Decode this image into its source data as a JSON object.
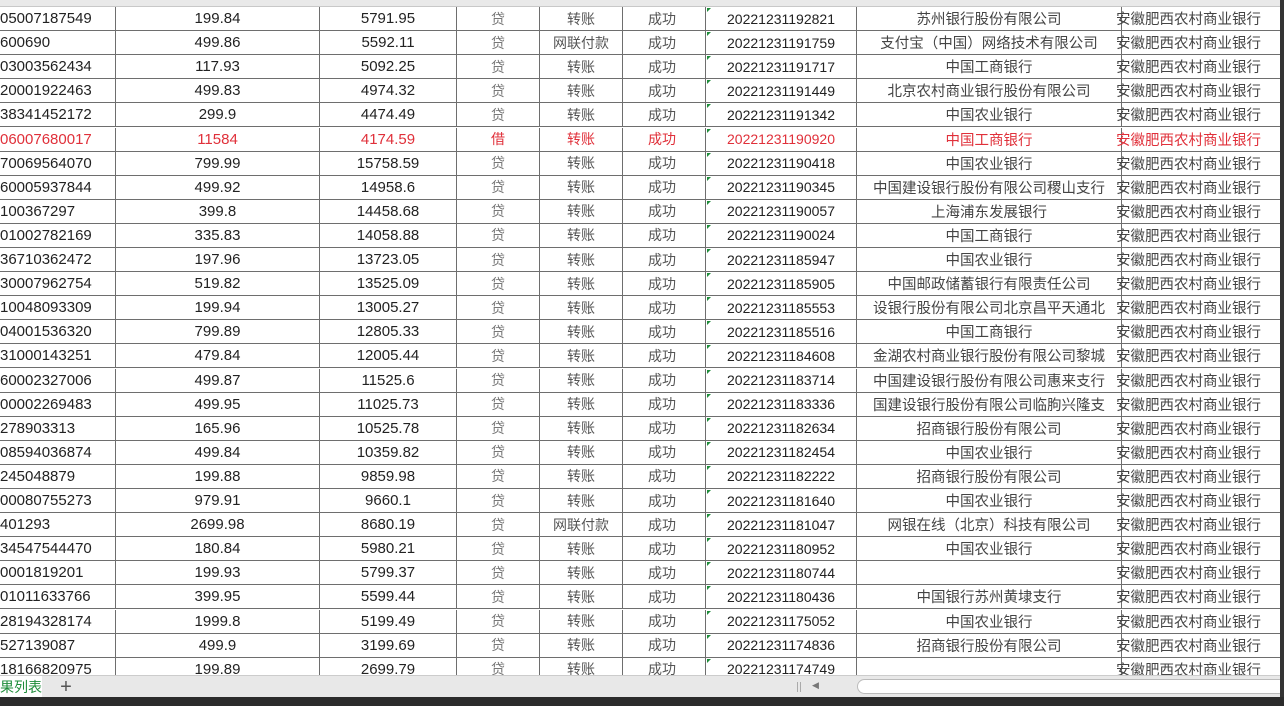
{
  "sheet_tab_label": "果列表",
  "add_sheet_icon": "plus-icon",
  "colors": {
    "accent": "#1e8c3a",
    "highlight_row": "#e0303a"
  },
  "rows": [
    {
      "account": "05007187549",
      "amount": "199.84",
      "balance": "5791.95",
      "direction": "贷",
      "type": "转账",
      "status": "成功",
      "time": "20221231192821",
      "counterparty_bank": "苏州银行股份有限公司",
      "bank": "安徽肥西农村商业银行"
    },
    {
      "account": "600690",
      "amount": "499.86",
      "balance": "5592.11",
      "direction": "贷",
      "type": "网联付款",
      "status": "成功",
      "time": "20221231191759",
      "counterparty_bank": "支付宝（中国）网络技术有限公司",
      "bank": "安徽肥西农村商业银行"
    },
    {
      "account": "03003562434",
      "amount": "117.93",
      "balance": "5092.25",
      "direction": "贷",
      "type": "转账",
      "status": "成功",
      "time": "20221231191717",
      "counterparty_bank": "中国工商银行",
      "bank": "安徽肥西农村商业银行"
    },
    {
      "account": "20001922463",
      "amount": "499.83",
      "balance": "4974.32",
      "direction": "贷",
      "type": "转账",
      "status": "成功",
      "time": "20221231191449",
      "counterparty_bank": "北京农村商业银行股份有限公司",
      "bank": "安徽肥西农村商业银行"
    },
    {
      "account": "38341452172",
      "amount": "299.9",
      "balance": "4474.49",
      "direction": "贷",
      "type": "转账",
      "status": "成功",
      "time": "20221231191342",
      "counterparty_bank": "中国农业银行",
      "bank": "安徽肥西农村商业银行"
    },
    {
      "account": "06007680017",
      "amount": "11584",
      "balance": "4174.59",
      "direction": "借",
      "type": "转账",
      "status": "成功",
      "time": "20221231190920",
      "counterparty_bank": "中国工商银行",
      "bank": "安徽肥西农村商业银行",
      "highlight": true
    },
    {
      "account": "70069564070",
      "amount": "799.99",
      "balance": "15758.59",
      "direction": "贷",
      "type": "转账",
      "status": "成功",
      "time": "20221231190418",
      "counterparty_bank": "中国农业银行",
      "bank": "安徽肥西农村商业银行"
    },
    {
      "account": "60005937844",
      "amount": "499.92",
      "balance": "14958.6",
      "direction": "贷",
      "type": "转账",
      "status": "成功",
      "time": "20221231190345",
      "counterparty_bank": "中国建设银行股份有限公司稷山支行",
      "bank": "安徽肥西农村商业银行"
    },
    {
      "account": "100367297",
      "amount": "399.8",
      "balance": "14458.68",
      "direction": "贷",
      "type": "转账",
      "status": "成功",
      "time": "20221231190057",
      "counterparty_bank": "上海浦东发展银行",
      "bank": "安徽肥西农村商业银行"
    },
    {
      "account": "01002782169",
      "amount": "335.83",
      "balance": "14058.88",
      "direction": "贷",
      "type": "转账",
      "status": "成功",
      "time": "20221231190024",
      "counterparty_bank": "中国工商银行",
      "bank": "安徽肥西农村商业银行"
    },
    {
      "account": "36710362472",
      "amount": "197.96",
      "balance": "13723.05",
      "direction": "贷",
      "type": "转账",
      "status": "成功",
      "time": "20221231185947",
      "counterparty_bank": "中国农业银行",
      "bank": "安徽肥西农村商业银行"
    },
    {
      "account": "30007962754",
      "amount": "519.82",
      "balance": "13525.09",
      "direction": "贷",
      "type": "转账",
      "status": "成功",
      "time": "20221231185905",
      "counterparty_bank": "中国邮政储蓄银行有限责任公司",
      "bank": "安徽肥西农村商业银行"
    },
    {
      "account": "10048093309",
      "amount": "199.94",
      "balance": "13005.27",
      "direction": "贷",
      "type": "转账",
      "status": "成功",
      "time": "20221231185553",
      "counterparty_bank": "设银行股份有限公司北京昌平天通北",
      "bank": "安徽肥西农村商业银行"
    },
    {
      "account": "04001536320",
      "amount": "799.89",
      "balance": "12805.33",
      "direction": "贷",
      "type": "转账",
      "status": "成功",
      "time": "20221231185516",
      "counterparty_bank": "中国工商银行",
      "bank": "安徽肥西农村商业银行"
    },
    {
      "account": "31000143251",
      "amount": "479.84",
      "balance": "12005.44",
      "direction": "贷",
      "type": "转账",
      "status": "成功",
      "time": "20221231184608",
      "counterparty_bank": "金湖农村商业银行股份有限公司黎城",
      "bank": "安徽肥西农村商业银行"
    },
    {
      "account": "60002327006",
      "amount": "499.87",
      "balance": "11525.6",
      "direction": "贷",
      "type": "转账",
      "status": "成功",
      "time": "20221231183714",
      "counterparty_bank": "中国建设银行股份有限公司惠来支行",
      "bank": "安徽肥西农村商业银行"
    },
    {
      "account": "00002269483",
      "amount": "499.95",
      "balance": "11025.73",
      "direction": "贷",
      "type": "转账",
      "status": "成功",
      "time": "20221231183336",
      "counterparty_bank": "国建设银行股份有限公司临朐兴隆支",
      "bank": "安徽肥西农村商业银行"
    },
    {
      "account": "278903313",
      "amount": "165.96",
      "balance": "10525.78",
      "direction": "贷",
      "type": "转账",
      "status": "成功",
      "time": "20221231182634",
      "counterparty_bank": "招商银行股份有限公司",
      "bank": "安徽肥西农村商业银行"
    },
    {
      "account": "08594036874",
      "amount": "499.84",
      "balance": "10359.82",
      "direction": "贷",
      "type": "转账",
      "status": "成功",
      "time": "20221231182454",
      "counterparty_bank": "中国农业银行",
      "bank": "安徽肥西农村商业银行"
    },
    {
      "account": "245048879",
      "amount": "199.88",
      "balance": "9859.98",
      "direction": "贷",
      "type": "转账",
      "status": "成功",
      "time": "20221231182222",
      "counterparty_bank": "招商银行股份有限公司",
      "bank": "安徽肥西农村商业银行"
    },
    {
      "account": "00080755273",
      "amount": "979.91",
      "balance": "9660.1",
      "direction": "贷",
      "type": "转账",
      "status": "成功",
      "time": "20221231181640",
      "counterparty_bank": "中国农业银行",
      "bank": "安徽肥西农村商业银行"
    },
    {
      "account": "401293",
      "amount": "2699.98",
      "balance": "8680.19",
      "direction": "贷",
      "type": "网联付款",
      "status": "成功",
      "time": "20221231181047",
      "counterparty_bank": "网银在线（北京）科技有限公司",
      "bank": "安徽肥西农村商业银行"
    },
    {
      "account": "34547544470",
      "amount": "180.84",
      "balance": "5980.21",
      "direction": "贷",
      "type": "转账",
      "status": "成功",
      "time": "20221231180952",
      "counterparty_bank": "中国农业银行",
      "bank": "安徽肥西农村商业银行"
    },
    {
      "account": "0001819201",
      "amount": "199.93",
      "balance": "5799.37",
      "direction": "贷",
      "type": "转账",
      "status": "成功",
      "time": "20221231180744",
      "counterparty_bank": "",
      "bank": "安徽肥西农村商业银行"
    },
    {
      "account": "01011633766",
      "amount": "399.95",
      "balance": "5599.44",
      "direction": "贷",
      "type": "转账",
      "status": "成功",
      "time": "20221231180436",
      "counterparty_bank": "中国银行苏州黄埭支行",
      "bank": "安徽肥西农村商业银行"
    },
    {
      "account": "28194328174",
      "amount": "1999.8",
      "balance": "5199.49",
      "direction": "贷",
      "type": "转账",
      "status": "成功",
      "time": "20221231175052",
      "counterparty_bank": "中国农业银行",
      "bank": "安徽肥西农村商业银行"
    },
    {
      "account": "527139087",
      "amount": "499.9",
      "balance": "3199.69",
      "direction": "贷",
      "type": "转账",
      "status": "成功",
      "time": "20221231174836",
      "counterparty_bank": "招商银行股份有限公司",
      "bank": "安徽肥西农村商业银行"
    },
    {
      "account": "18166820975",
      "amount": "199.89",
      "balance": "2699.79",
      "direction": "贷",
      "type": "转账",
      "status": "成功",
      "time": "20221231174749",
      "counterparty_bank": "",
      "bank": "安徽肥西农村商业银行"
    }
  ]
}
